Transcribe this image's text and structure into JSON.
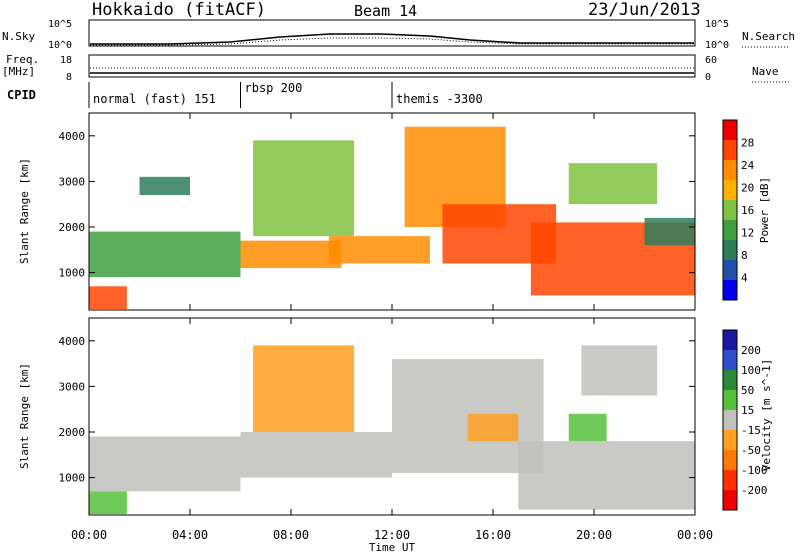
{
  "header": {
    "station": "Hokkaido (fitACF)",
    "beam": "Beam 14",
    "date": "23/Jun/2013"
  },
  "side_labels": {
    "nsky": "N.Sky",
    "freq_top": "Freq.",
    "freq_unit": "[MHz]",
    "cpid": "CPID",
    "nsearch": "N.Search",
    "nave": "Nave"
  },
  "top_axes": {
    "count_ticks_left": [
      "10^5",
      "10^0"
    ],
    "count_ticks_right": [
      "10^5",
      "10^0"
    ],
    "freq_ticks": [
      "18",
      "8"
    ],
    "nave_ticks": [
      "60",
      "0"
    ]
  },
  "cpid_segments": [
    {
      "label": "normal (fast) 151",
      "start_hour": 0
    },
    {
      "label": "rbsp 200",
      "start_hour": 6
    },
    {
      "label": "themis -3300",
      "start_hour": 12
    }
  ],
  "colors": {
    "power_scale": [
      "#0000ee",
      "#1f4fa8",
      "#2e7d5a",
      "#3f9f3f",
      "#7fc23f",
      "#ffb000",
      "#ff8c00",
      "#ff4500",
      "#ee0000"
    ],
    "velocity_scale": [
      "#1a1aa0",
      "#2f4fd0",
      "#2a8a3a",
      "#55c038",
      "#c0c0bc",
      "#ffa020",
      "#ff7a00",
      "#ff3000",
      "#ee0000"
    ]
  },
  "chart_data": [
    {
      "type": "heatmap",
      "panel": "power",
      "xlabel": "",
      "ylabel": "Slant Range [km]",
      "xlim": [
        "00:00",
        "00:00"
      ],
      "x_ticks": [
        "00:00",
        "04:00",
        "08:00",
        "12:00",
        "16:00",
        "20:00",
        "00:00"
      ],
      "ylim": [
        180,
        4500
      ],
      "y_ticks": [
        1000,
        2000,
        3000,
        4000
      ],
      "colorbar": {
        "label": "Power [dB]",
        "range": [
          0,
          32
        ],
        "ticks": [
          "4",
          "8",
          "12",
          "16",
          "20",
          "24",
          "28"
        ]
      },
      "echo_regions": [
        {
          "t0": 0.0,
          "t1": 1.5,
          "r0": 200,
          "r1": 700,
          "value": 28
        },
        {
          "t0": 0.0,
          "t1": 6.0,
          "r0": 900,
          "r1": 1900,
          "value": 14
        },
        {
          "t0": 2.0,
          "t1": 4.0,
          "r0": 2700,
          "r1": 3100,
          "value": 8
        },
        {
          "t0": 6.0,
          "t1": 10.0,
          "r0": 1100,
          "r1": 1700,
          "value": 24
        },
        {
          "t0": 6.5,
          "t1": 10.5,
          "r0": 1800,
          "r1": 3900,
          "value": 16
        },
        {
          "t0": 9.5,
          "t1": 13.5,
          "r0": 1200,
          "r1": 1800,
          "value": 24
        },
        {
          "t0": 12.5,
          "t1": 16.5,
          "r0": 2000,
          "r1": 4200,
          "value": 24
        },
        {
          "t0": 14.0,
          "t1": 18.5,
          "r0": 1200,
          "r1": 2500,
          "value": 28
        },
        {
          "t0": 17.5,
          "t1": 24.0,
          "r0": 500,
          "r1": 2100,
          "value": 28
        },
        {
          "t0": 19.0,
          "t1": 22.5,
          "r0": 2500,
          "r1": 3400,
          "value": 16
        },
        {
          "t0": 22.0,
          "t1": 24.0,
          "r0": 1600,
          "r1": 2200,
          "value": 8
        }
      ]
    },
    {
      "type": "heatmap",
      "panel": "velocity",
      "xlabel": "Time UT",
      "ylabel": "Slant Range [km]",
      "xlim": [
        "00:00",
        "00:00"
      ],
      "x_ticks": [
        "00:00",
        "04:00",
        "08:00",
        "12:00",
        "16:00",
        "20:00",
        "00:00"
      ],
      "ylim": [
        180,
        4500
      ],
      "y_ticks": [
        1000,
        2000,
        3000,
        4000
      ],
      "colorbar": {
        "label": "Velocity [m s^-1]",
        "ticks": [
          "200",
          "100",
          "50",
          "15",
          "-15",
          "-50",
          "-100",
          "-200"
        ]
      },
      "echo_regions": [
        {
          "t0": 0.0,
          "t1": 1.5,
          "r0": 200,
          "r1": 700,
          "value": 80
        },
        {
          "t0": 0.0,
          "t1": 6.0,
          "r0": 700,
          "r1": 1900,
          "value": 0
        },
        {
          "t0": 6.0,
          "t1": 12.0,
          "r0": 1000,
          "r1": 2000,
          "value": 0
        },
        {
          "t0": 6.5,
          "t1": 10.5,
          "r0": 2000,
          "r1": 3900,
          "value": -40
        },
        {
          "t0": 12.0,
          "t1": 18.0,
          "r0": 1100,
          "r1": 3600,
          "value": 0
        },
        {
          "t0": 15.0,
          "t1": 17.0,
          "r0": 1800,
          "r1": 2400,
          "value": -40
        },
        {
          "t0": 17.0,
          "t1": 24.0,
          "r0": 300,
          "r1": 1800,
          "value": 0
        },
        {
          "t0": 19.0,
          "t1": 20.5,
          "r0": 1800,
          "r1": 2400,
          "value": 60
        },
        {
          "t0": 19.5,
          "t1": 22.5,
          "r0": 2800,
          "r1": 3900,
          "value": 0
        }
      ]
    }
  ]
}
